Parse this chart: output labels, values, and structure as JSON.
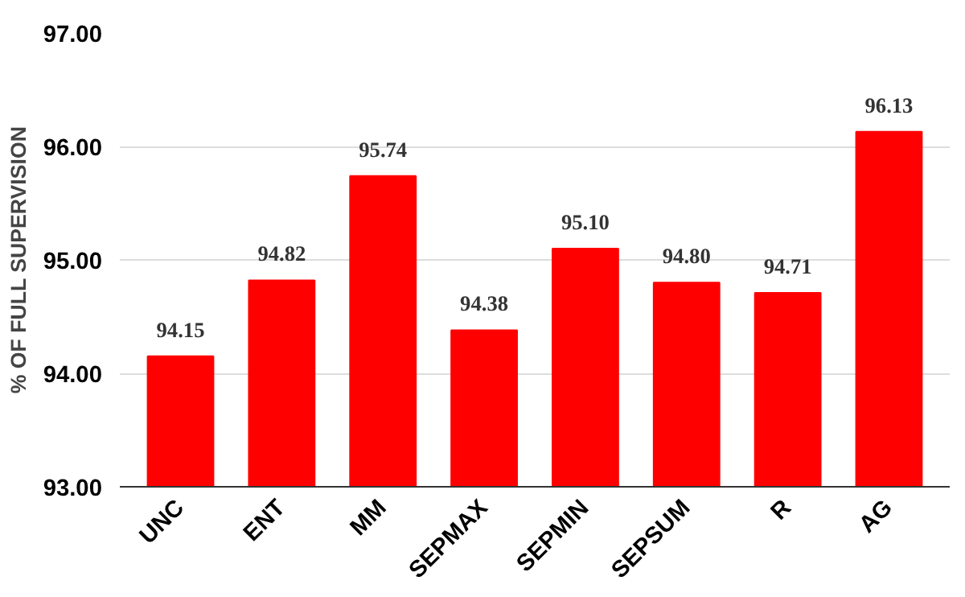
{
  "chart_data": {
    "type": "bar",
    "ylabel": "% OF FULL SUPERVISION",
    "categories": [
      "UNC",
      "ENT",
      "MM",
      "SEPMAX",
      "SEPMIN",
      "SEPSUM",
      "R",
      "AG"
    ],
    "values": [
      94.15,
      94.82,
      95.74,
      94.38,
      95.1,
      94.8,
      94.71,
      96.13
    ],
    "value_labels": [
      "94.15",
      "94.82",
      "95.74",
      "94.38",
      "95.10",
      "94.80",
      "94.71",
      "96.13"
    ],
    "color": "#ff0000",
    "ylim": [
      93,
      97
    ],
    "yticks": [
      {
        "value": 93,
        "label": "93.00"
      },
      {
        "value": 94,
        "label": "94.00"
      },
      {
        "value": 95,
        "label": "95.00"
      },
      {
        "value": 96,
        "label": "96.00"
      },
      {
        "value": 97,
        "label": "97.00"
      }
    ],
    "grid": "y"
  }
}
